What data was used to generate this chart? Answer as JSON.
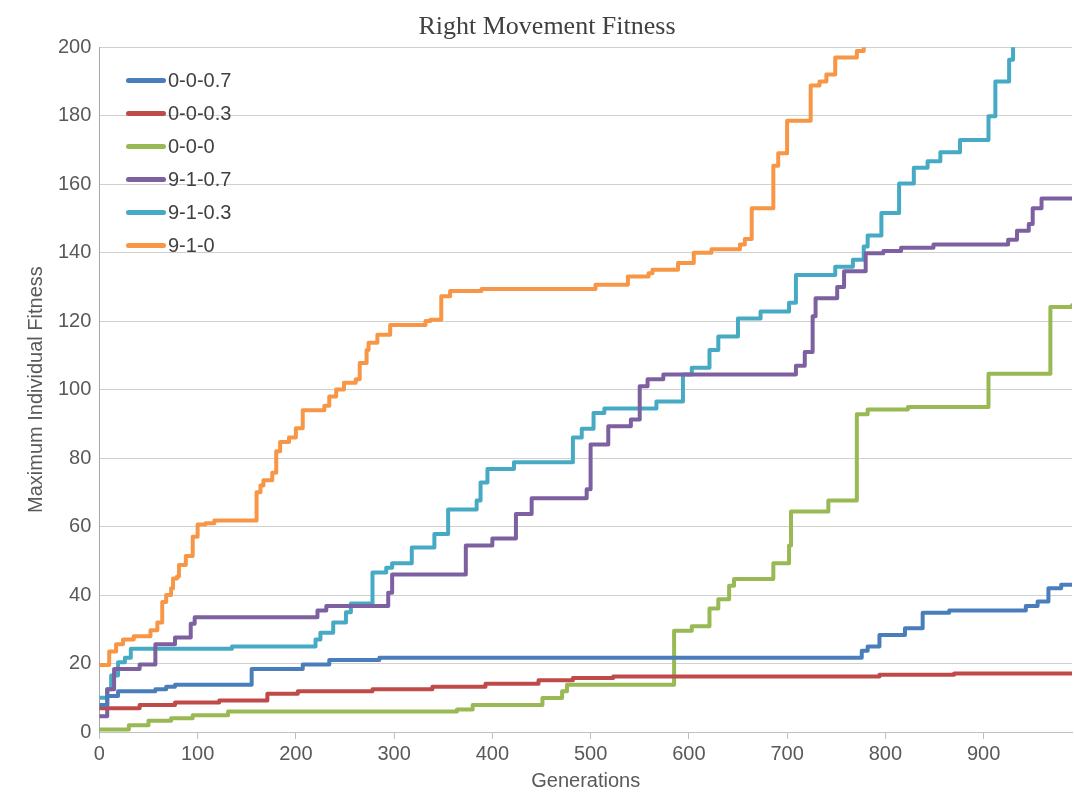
{
  "chart_data": {
    "type": "step",
    "title": "Right Movement Fitness",
    "xlabel": "Generations",
    "ylabel": "Maximum Individual Fitness",
    "xlim": [
      0,
      990
    ],
    "xticks": [
      0,
      100,
      200,
      300,
      400,
      500,
      600,
      700,
      800,
      900
    ],
    "ylim": [
      0,
      200
    ],
    "yticks": [
      0,
      20,
      40,
      60,
      80,
      100,
      120,
      140,
      160,
      180,
      200
    ],
    "grid": "y",
    "legend": "top left",
    "line_style": "solid",
    "marker": "none",
    "series": [
      {
        "name": "0-0-0.7",
        "color": "#4a7ebb",
        "x": [
          0,
          8,
          19,
          57,
          68,
          77,
          155,
          207,
          234,
          285,
          776,
          782,
          794,
          820,
          838,
          865,
          943,
          955,
          966,
          979,
          990
        ],
        "values": [
          7.9,
          10.5,
          11.9,
          12.5,
          13.2,
          13.8,
          18.4,
          19.7,
          21,
          21.7,
          23.7,
          25,
          28.3,
          30.3,
          34.8,
          35.5,
          36.8,
          38.1,
          42,
          43,
          43
        ]
      },
      {
        "name": "0-0-0.3",
        "color": "#be4b48",
        "x": [
          0,
          41,
          77,
          122,
          171,
          202,
          278,
          339,
          393,
          447,
          482,
          523,
          794,
          870,
          990
        ],
        "values": [
          6.9,
          7.9,
          8.6,
          9.2,
          11.2,
          11.9,
          12.5,
          13.2,
          14.1,
          15.1,
          15.8,
          16.2,
          16.7,
          17.1,
          17.1
        ]
      },
      {
        "name": "0-0-0",
        "color": "#98b954",
        "x": [
          0,
          30,
          50,
          73,
          95,
          131,
          364,
          380,
          451,
          471,
          476,
          585,
          603,
          621,
          630,
          641,
          646,
          686,
          702,
          704,
          742,
          771,
          782,
          823,
          905,
          968,
          990
        ],
        "values": [
          0.7,
          2,
          3.3,
          4,
          4.9,
          6,
          6.6,
          7.9,
          9.9,
          11.9,
          13.8,
          29.6,
          30.9,
          36.1,
          38.8,
          42.7,
          44.7,
          49.3,
          54.5,
          64.4,
          67.6,
          92.8,
          94.2,
          94.9,
          104.6,
          124.1,
          124.6
        ]
      },
      {
        "name": "9-1-0.7",
        "color": "#7d60a0",
        "x": [
          0,
          8,
          15,
          41,
          57,
          77,
          93,
          97,
          222,
          231,
          294,
          298,
          373,
          400,
          424,
          440,
          496,
          500,
          518,
          541,
          550,
          558,
          574,
          709,
          718,
          726,
          729,
          751,
          758,
          780,
          798,
          816,
          849,
          925,
          934,
          946,
          950,
          959,
          990
        ],
        "values": [
          4.6,
          12.5,
          18.4,
          19.7,
          25.6,
          27.6,
          31.6,
          33.5,
          35.5,
          36.8,
          40.7,
          46,
          54.5,
          56.5,
          63.7,
          68.3,
          70.9,
          84,
          89.3,
          91.3,
          101,
          103,
          104.4,
          107,
          111,
          121.4,
          126.7,
          130,
          134.6,
          139.8,
          140.5,
          141.4,
          142.4,
          143.8,
          146.4,
          148.4,
          153,
          155.8,
          155.8
        ]
      },
      {
        "name": "9-1-0.3",
        "color": "#46aac5",
        "x": [
          0,
          8,
          12,
          19,
          26,
          32,
          135,
          220,
          225,
          238,
          251,
          256,
          278,
          292,
          298,
          318,
          341,
          355,
          384,
          388,
          395,
          422,
          482,
          491,
          503,
          514,
          567,
          594,
          603,
          621,
          630,
          650,
          673,
          702,
          709,
          749,
          767,
          778,
          782,
          796,
          814,
          829,
          843,
          856,
          876,
          905,
          912,
          926,
          930
        ],
        "values": [
          10,
          12.5,
          16.5,
          20.4,
          21.7,
          24.3,
          25,
          27,
          29,
          32,
          35,
          37.5,
          46.6,
          48,
          49.3,
          53.9,
          57.8,
          65,
          67.6,
          72.9,
          76.8,
          78.8,
          86,
          88.6,
          93.2,
          94.5,
          96.5,
          104.4,
          106.4,
          111.6,
          115.5,
          120.8,
          122.8,
          125.4,
          133.5,
          135.9,
          137.9,
          141.8,
          145,
          151.6,
          160.2,
          164.8,
          166.7,
          169.3,
          172.9,
          179.8,
          190,
          196.3,
          200
        ]
      },
      {
        "name": "9-1-0",
        "color": "#f79646",
        "x": [
          0,
          10,
          17,
          24,
          35,
          52,
          59,
          64,
          68,
          73,
          75,
          79,
          81,
          88,
          95,
          100,
          108,
          117,
          160,
          164,
          167,
          176,
          180,
          184,
          193,
          200,
          207,
          229,
          234,
          241,
          249,
          261,
          265,
          272,
          274,
          283,
          296,
          332,
          337,
          348,
          357,
          389,
          505,
          538,
          559,
          563,
          589,
          605,
          623,
          652,
          657,
          664,
          686,
          691,
          700,
          724,
          733,
          740,
          749,
          771,
          778
        ],
        "values": [
          19.6,
          23.5,
          25.6,
          27,
          28,
          29.7,
          32,
          38,
          40,
          42,
          44.8,
          45.4,
          48.8,
          51.4,
          57,
          60.6,
          61,
          61.8,
          70,
          72,
          73.5,
          75.7,
          82,
          84.7,
          86,
          88.7,
          94,
          95.3,
          98,
          100,
          102,
          103,
          107.8,
          111.6,
          113.7,
          116,
          118.9,
          120,
          120.4,
          127.3,
          128.8,
          129.4,
          130.6,
          133,
          134,
          135,
          137,
          140,
          141,
          142.4,
          144,
          153,
          165.4,
          169,
          178.5,
          188.8,
          190,
          192,
          197,
          198.9,
          200
        ]
      }
    ]
  }
}
